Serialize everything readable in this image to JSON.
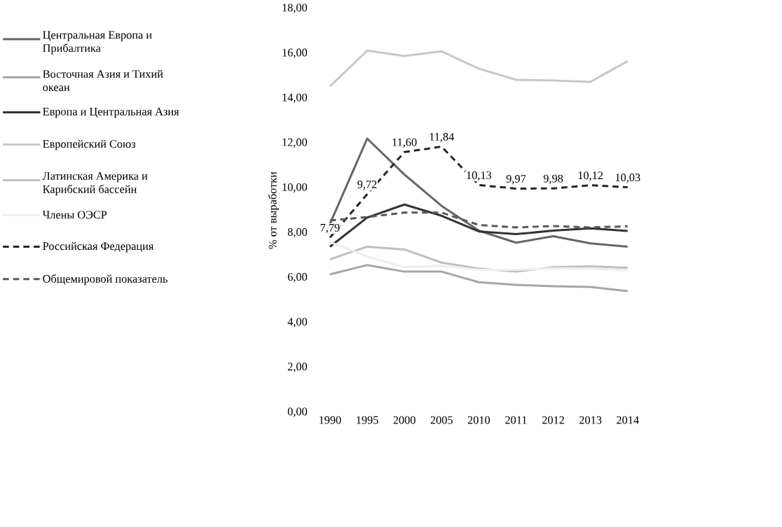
{
  "chart_data": {
    "type": "line",
    "ylabel": "% от выработки",
    "categories": [
      "1990",
      "1995",
      "2000",
      "2005",
      "2010",
      "2011",
      "2012",
      "2013",
      "2014"
    ],
    "ylim": [
      0,
      18
    ],
    "yticks": [
      {
        "value": 0,
        "label": "0,00"
      },
      {
        "value": 2,
        "label": "2,00"
      },
      {
        "value": 4,
        "label": "4,00"
      },
      {
        "value": 6,
        "label": "6,00"
      },
      {
        "value": 8,
        "label": "8,00"
      },
      {
        "value": 10,
        "label": "10,00"
      },
      {
        "value": 12,
        "label": "12,00"
      },
      {
        "value": 14,
        "label": "14,00"
      },
      {
        "value": 16,
        "label": "16,00"
      },
      {
        "value": 18,
        "label": "18,00"
      }
    ],
    "legend": "left",
    "series": [
      {
        "name": "Центральная Европа и Прибалтика",
        "color": "#666666",
        "values": [
          8.4,
          12.2,
          10.6,
          9.2,
          8.1,
          7.56,
          7.85,
          7.53,
          7.38
        ]
      },
      {
        "name": "Восточная Азия и Тихий океан",
        "color": "#a6a6a6",
        "values": [
          6.15,
          6.56,
          6.27,
          6.27,
          5.8,
          5.68,
          5.62,
          5.59,
          5.4
        ]
      },
      {
        "name": "Европа и Центральная Азия",
        "color": "#333333",
        "values": [
          7.38,
          8.68,
          9.26,
          8.76,
          8.06,
          7.94,
          8.1,
          8.2,
          8.08
        ]
      },
      {
        "name": "Европейский Союз",
        "color": "#c8c8c8",
        "values": [
          14.53,
          16.12,
          15.88,
          16.09,
          15.32,
          14.82,
          14.79,
          14.73,
          15.65
        ]
      },
      {
        "name": "Латинская Америка и Карибский бассейн",
        "color": "#bfbfbf",
        "values": [
          6.82,
          7.38,
          7.26,
          6.67,
          6.41,
          6.27,
          6.47,
          6.51,
          6.44
        ]
      },
      {
        "name": "Члены ОЭСР",
        "color": "#efefef",
        "values": [
          7.59,
          6.94,
          6.47,
          6.53,
          6.35,
          6.35,
          6.41,
          6.41,
          6.32
        ]
      },
      {
        "name": "Российская Федерация",
        "color": "#262626",
        "line_style": "dashed",
        "values": [
          7.79,
          9.72,
          11.6,
          11.84,
          10.13,
          9.97,
          9.98,
          10.12,
          10.03
        ],
        "value_labels": [
          "7,79",
          "9,72",
          "11,60",
          "11,84",
          "10,13",
          "9,97",
          "9,98",
          "10,12",
          "10,03"
        ]
      },
      {
        "name": "Общемировой показатель",
        "color": "#595959",
        "line_style": "dashed",
        "values": [
          8.55,
          8.7,
          8.9,
          8.9,
          8.35,
          8.24,
          8.3,
          8.24,
          8.29
        ]
      }
    ]
  }
}
